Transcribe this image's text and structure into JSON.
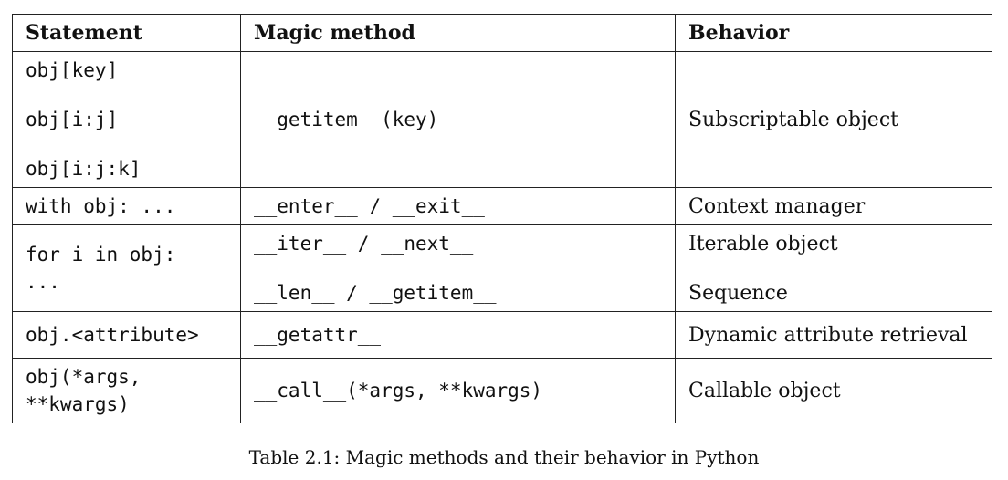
{
  "table": {
    "headers": [
      "Statement",
      "Magic method",
      "Behavior"
    ],
    "rows": [
      {
        "statement": [
          "obj[key]",
          "obj[i:j]",
          "obj[i:j:k]"
        ],
        "method": [
          "__getitem__(key)"
        ],
        "behavior": [
          "Subscriptable object"
        ]
      },
      {
        "statement": [
          "with obj: ..."
        ],
        "method": [
          "__enter__ / __exit__"
        ],
        "behavior": [
          "Context manager"
        ]
      },
      {
        "statement": [
          "for i in obj:",
          "..."
        ],
        "method": [
          "__iter__ / __next__",
          "__len__ / __getitem__"
        ],
        "behavior": [
          "Iterable object",
          "Sequence"
        ]
      },
      {
        "statement": [
          "obj.<attribute>"
        ],
        "method": [
          "__getattr__"
        ],
        "behavior": [
          "Dynamic attribute retrieval"
        ]
      },
      {
        "statement": [
          "obj(*args,",
          "**kwargs)"
        ],
        "method": [
          "__call__(*args, **kwargs)"
        ],
        "behavior": [
          "Callable object"
        ]
      }
    ]
  },
  "caption": "Table 2.1: Magic methods and their behavior in Python"
}
